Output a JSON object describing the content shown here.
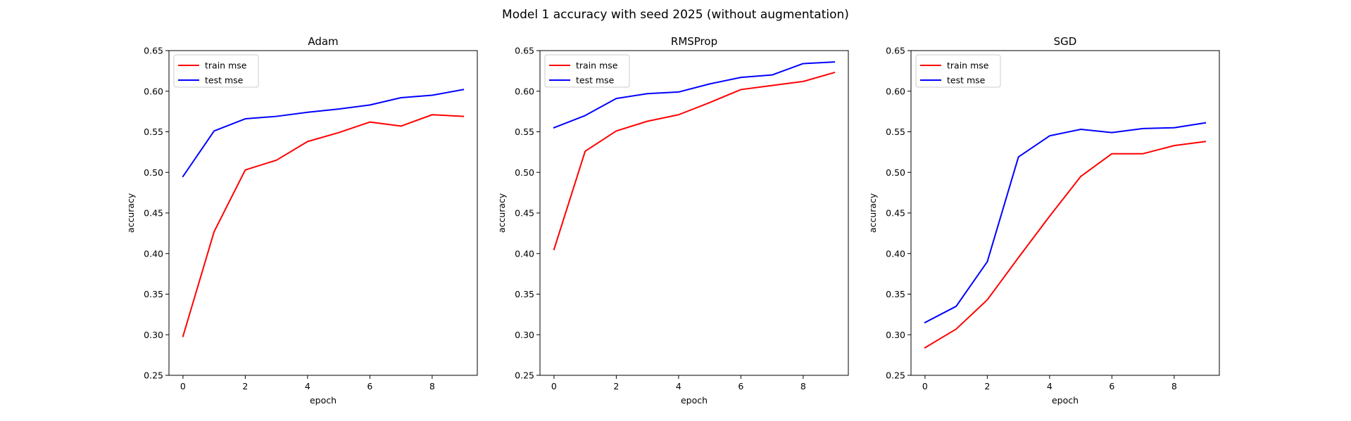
{
  "figure": {
    "title": "Model 1 accuracy with seed 2025 (without augmentation)"
  },
  "chart_data": [
    {
      "type": "line",
      "title": "Adam",
      "xlabel": "epoch",
      "ylabel": "accuracy",
      "xlim": [
        -0.45,
        9.45
      ],
      "ylim": [
        0.25,
        0.65
      ],
      "xticks": [
        0,
        2,
        4,
        6,
        8
      ],
      "yticks": [
        0.25,
        0.3,
        0.35,
        0.4,
        0.45,
        0.5,
        0.55,
        0.6,
        0.65
      ],
      "legend": "top-left",
      "grid": false,
      "x": [
        0,
        1,
        2,
        3,
        4,
        5,
        6,
        7,
        8,
        9
      ],
      "series": [
        {
          "name": "train mse",
          "color": "#ff0000",
          "values": [
            0.298,
            0.427,
            0.503,
            0.515,
            0.538,
            0.549,
            0.562,
            0.557,
            0.571,
            0.569
          ]
        },
        {
          "name": "test mse",
          "color": "#0000ff",
          "values": [
            0.495,
            0.551,
            0.566,
            0.569,
            0.574,
            0.578,
            0.583,
            0.592,
            0.595,
            0.602
          ]
        }
      ]
    },
    {
      "type": "line",
      "title": "RMSProp",
      "xlabel": "epoch",
      "ylabel": "accuracy",
      "xlim": [
        -0.45,
        9.45
      ],
      "ylim": [
        0.25,
        0.65
      ],
      "xticks": [
        0,
        2,
        4,
        6,
        8
      ],
      "yticks": [
        0.25,
        0.3,
        0.35,
        0.4,
        0.45,
        0.5,
        0.55,
        0.6,
        0.65
      ],
      "legend": "top-left",
      "grid": false,
      "x": [
        0,
        1,
        2,
        3,
        4,
        5,
        6,
        7,
        8,
        9
      ],
      "series": [
        {
          "name": "train mse",
          "color": "#ff0000",
          "values": [
            0.405,
            0.526,
            0.551,
            0.563,
            0.571,
            0.586,
            0.602,
            0.607,
            0.612,
            0.623
          ]
        },
        {
          "name": "test mse",
          "color": "#0000ff",
          "values": [
            0.555,
            0.57,
            0.591,
            0.597,
            0.599,
            0.609,
            0.617,
            0.62,
            0.634,
            0.636
          ]
        }
      ]
    },
    {
      "type": "line",
      "title": "SGD",
      "xlabel": "epoch",
      "ylabel": "accuracy",
      "xlim": [
        -0.45,
        9.45
      ],
      "ylim": [
        0.25,
        0.65
      ],
      "xticks": [
        0,
        2,
        4,
        6,
        8
      ],
      "yticks": [
        0.25,
        0.3,
        0.35,
        0.4,
        0.45,
        0.5,
        0.55,
        0.6,
        0.65
      ],
      "legend": "top-left",
      "grid": false,
      "x": [
        0,
        1,
        2,
        3,
        4,
        5,
        6,
        7,
        8,
        9
      ],
      "series": [
        {
          "name": "train mse",
          "color": "#ff0000",
          "values": [
            0.284,
            0.307,
            0.343,
            0.395,
            0.446,
            0.495,
            0.523,
            0.523,
            0.533,
            0.538
          ]
        },
        {
          "name": "test mse",
          "color": "#0000ff",
          "values": [
            0.315,
            0.335,
            0.39,
            0.519,
            0.545,
            0.553,
            0.549,
            0.554,
            0.555,
            0.561
          ]
        }
      ]
    }
  ]
}
